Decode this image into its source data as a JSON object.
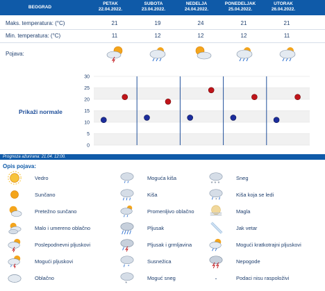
{
  "header": {
    "city": "BEOGRAD",
    "days": [
      {
        "name": "PETAK",
        "date": "22.04.2022."
      },
      {
        "name": "SUBOTA",
        "date": "23.04.2022."
      },
      {
        "name": "NEDELJA",
        "date": "24.04.2022."
      },
      {
        "name": "PONEDELJAK",
        "date": "25.04.2022."
      },
      {
        "name": "UTORAK",
        "date": "26.04.2022."
      }
    ]
  },
  "rows": {
    "max_label": "Maks. temperatura: (°C)",
    "max_values": [
      "21",
      "19",
      "24",
      "21",
      "21"
    ],
    "min_label": "Min. temperatura: (°C)",
    "min_values": [
      "11",
      "12",
      "12",
      "12",
      "11"
    ],
    "phen_label": "Pojava:",
    "phen_icons": [
      "sun-cloud-thunder-icon",
      "cloud-rain-icon",
      "sun-cloud-icon",
      "cloud-rain-icon",
      "cloud-rain-icon"
    ]
  },
  "chart": {
    "link_label": "Prikaži normale",
    "colors": {
      "max": "#c0141a",
      "min": "#1c2d9c",
      "grid": "#e6e6e6",
      "band": "#f1f1f1",
      "divider": "#1f4f9a"
    }
  },
  "chart_data": {
    "type": "scatter",
    "categories": [
      "PETAK 22.04.2022.",
      "SUBOTA 23.04.2022.",
      "NEDELJA 24.04.2022.",
      "PONEDELJAK 25.04.2022.",
      "UTORAK 26.04.2022."
    ],
    "series": [
      {
        "values": [
          21,
          19,
          24,
          21,
          21
        ]
      },
      {
        "values": [
          11,
          12,
          12,
          12,
          11
        ]
      }
    ],
    "yticks": [
      "30",
      "25",
      "20",
      "15",
      "10",
      "5",
      "0"
    ],
    "ylim": [
      0,
      30
    ],
    "grid": true
  },
  "footer": {
    "updated": "Prognoza ažurirana:  21.04. 12:00."
  },
  "legend": {
    "title": "Opis pojava:",
    "items": [
      {
        "label": "Vedro",
        "icon": "sun-icon"
      },
      {
        "label": "Moguća kiša",
        "icon": "cloud-rain-possible-icon"
      },
      {
        "label": "Sneg",
        "icon": "cloud-snow-icon"
      },
      {
        "label": "Sunčano",
        "icon": "sun-small-icon"
      },
      {
        "label": "Kiša",
        "icon": "cloud-rain-icon"
      },
      {
        "label": "Kiša koja se ledi",
        "icon": "cloud-freezing-rain-icon"
      },
      {
        "label": "Pretežno sunčano",
        "icon": "sun-cloud-icon"
      },
      {
        "label": "Promenljivo oblačno",
        "icon": "cloud-sun-variable-icon"
      },
      {
        "label": "Magla",
        "icon": "fog-icon"
      },
      {
        "label": "Malo i umereno oblačno",
        "icon": "sun-clouds-icon"
      },
      {
        "label": "Pljusak",
        "icon": "cloud-shower-icon"
      },
      {
        "label": "Jak vetar",
        "icon": "wind-icon"
      },
      {
        "label": "Poslepodnevni pljuskovi",
        "icon": "sun-cloud-thunder-icon"
      },
      {
        "label": "Pljusak i grmljavina",
        "icon": "cloud-thunder-icon"
      },
      {
        "label": "Mogući kratkotrajni pljuskovi",
        "icon": "sun-cloud-shower-icon"
      },
      {
        "label": "Mogući pljuskovi",
        "icon": "cloud-thunder-possible-icon"
      },
      {
        "label": "Susnežica",
        "icon": "cloud-sleet-icon"
      },
      {
        "label": "Nepogode",
        "icon": "storm-icon"
      },
      {
        "label": "Oblačno",
        "icon": "cloud-icon"
      },
      {
        "label": "Moguć sneg",
        "icon": "cloud-snow-possible-icon"
      },
      {
        "label": "Podaci nisu raspoloživi",
        "icon": "dash-icon",
        "mark": "-"
      }
    ]
  }
}
